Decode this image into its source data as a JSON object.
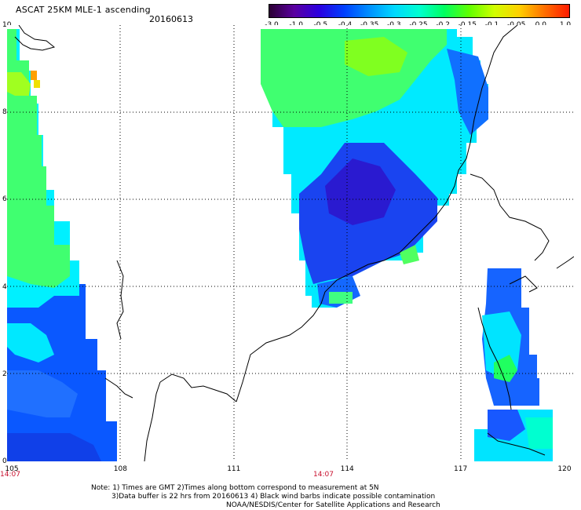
{
  "header": {
    "title": "ASCAT 25KM MLE-1 ascending",
    "date": "20160613"
  },
  "colorbar": {
    "labels": [
      "-3.0",
      "-1.0",
      "-0.5",
      "-0.4",
      "-0.35",
      "-0.3",
      "-0.25",
      "-0.2",
      "-0.15",
      "-0.1",
      "-0.05",
      "0.0",
      "1.0"
    ],
    "colors": [
      "#2b0033",
      "#5a00a0",
      "#2a00e0",
      "#0040ff",
      "#0090ff",
      "#00d8ff",
      "#00ffd0",
      "#00ff60",
      "#60ff00",
      "#d0ff00",
      "#ffd000",
      "#ff7000",
      "#ff1a00"
    ]
  },
  "axes": {
    "lat_labels": [
      "10",
      "8",
      "6",
      "4",
      "2",
      "0"
    ],
    "lon_labels": [
      "105",
      "108",
      "111",
      "114",
      "117",
      "120"
    ]
  },
  "time_labels": [
    "14:07",
    "14:07"
  ],
  "footnotes": {
    "line1": "Note: 1) Times are GMT 2)Times along bottom correspond to measurement at 5N",
    "line2": "3)Data buffer is 22 hrs from 20160613 4) Black wind barbs indicate possible contamination",
    "line3": "NOAA/NESDIS/Center for Satellite Applications and Research"
  },
  "swath_palette": {
    "blue_deep": "#2020e0",
    "blue": "#1060ff",
    "cyan": "#00e0ff",
    "aqua": "#00ffc8",
    "green": "#20ff60",
    "lime": "#80ff00",
    "yellow": "#f0e800",
    "orange": "#ff9000"
  }
}
